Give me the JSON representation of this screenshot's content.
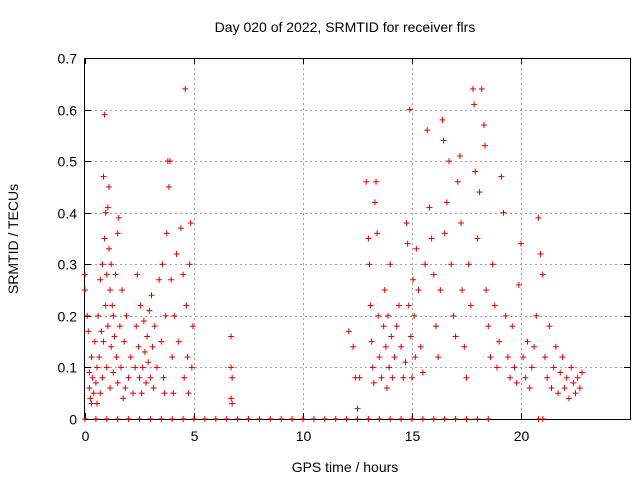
{
  "chart_data": {
    "type": "scatter",
    "title": "Day 020 of 2022, SRMTID for receiver flrs",
    "xlabel": "GPS time / hours",
    "ylabel": "SRMTID / TECUs",
    "xlim": [
      0,
      25
    ],
    "ylim": [
      0,
      0.7
    ],
    "xticks": [
      0,
      5,
      10,
      15,
      20
    ],
    "yticks": [
      0,
      0.1,
      0.2,
      0.3,
      0.4,
      0.5,
      0.6,
      0.7
    ],
    "grid": true,
    "legend": "none",
    "marker": "plus",
    "color": "#dd0000",
    "series": [
      {
        "name": "SRMTID",
        "points": [
          [
            0.0,
            0.28
          ],
          [
            0.0,
            0.25
          ],
          [
            0.1,
            0.2
          ],
          [
            0.15,
            0.17
          ],
          [
            0.2,
            0.09
          ],
          [
            0.2,
            0.06
          ],
          [
            0.25,
            0.04
          ],
          [
            0.3,
            0.12
          ],
          [
            0.3,
            0.03
          ],
          [
            0.35,
            0.08
          ],
          [
            0.4,
            0.05
          ],
          [
            0.45,
            0.15
          ],
          [
            0.5,
            0.07
          ],
          [
            0.55,
            0.1
          ],
          [
            0.55,
            0.03
          ],
          [
            0.6,
            0.2
          ],
          [
            0.65,
            0.12
          ],
          [
            0.7,
            0.05
          ],
          [
            0.7,
            0.27
          ],
          [
            0.75,
            0.17
          ],
          [
            0.8,
            0.3
          ],
          [
            0.8,
            0.08
          ],
          [
            0.85,
            0.15
          ],
          [
            0.85,
            0.47
          ],
          [
            0.9,
            0.35
          ],
          [
            0.9,
            0.59
          ],
          [
            0.95,
            0.4
          ],
          [
            0.95,
            0.22
          ],
          [
            1.0,
            0.28
          ],
          [
            1.0,
            0.1
          ],
          [
            1.05,
            0.41
          ],
          [
            1.05,
            0.18
          ],
          [
            1.1,
            0.45
          ],
          [
            1.1,
            0.33
          ],
          [
            1.15,
            0.25
          ],
          [
            1.15,
            0.06
          ],
          [
            1.2,
            0.3
          ],
          [
            1.2,
            0.14
          ],
          [
            1.25,
            0.22
          ],
          [
            1.3,
            0.09
          ],
          [
            1.3,
            0.2
          ],
          [
            1.35,
            0.16
          ],
          [
            1.4,
            0.28
          ],
          [
            1.45,
            0.12
          ],
          [
            1.5,
            0.36
          ],
          [
            1.5,
            0.07
          ],
          [
            1.55,
            0.39
          ],
          [
            1.6,
            0.18
          ],
          [
            1.65,
            0.1
          ],
          [
            1.7,
            0.25
          ],
          [
            1.75,
            0.04
          ],
          [
            1.8,
            0.15
          ],
          [
            1.85,
            0.06
          ],
          [
            1.9,
            0.2
          ],
          [
            2.0,
            0.08
          ],
          [
            2.1,
            0.12
          ],
          [
            2.2,
            0.05
          ],
          [
            2.3,
            0.1
          ],
          [
            2.35,
            0.18
          ],
          [
            2.4,
            0.28
          ],
          [
            2.45,
            0.14
          ],
          [
            2.5,
            0.08
          ],
          [
            2.55,
            0.22
          ],
          [
            2.6,
            0.05
          ],
          [
            2.65,
            0.1
          ],
          [
            2.7,
            0.19
          ],
          [
            2.75,
            0.13
          ],
          [
            2.8,
            0.07
          ],
          [
            2.85,
            0.16
          ],
          [
            2.9,
            0.11
          ],
          [
            2.95,
            0.21
          ],
          [
            3.0,
            0.08
          ],
          [
            3.05,
            0.24
          ],
          [
            3.1,
            0.14
          ],
          [
            3.15,
            0.06
          ],
          [
            3.2,
            0.18
          ],
          [
            3.3,
            0.1
          ],
          [
            3.4,
            0.27
          ],
          [
            3.5,
            0.15
          ],
          [
            3.55,
            0.3
          ],
          [
            3.6,
            0.08
          ],
          [
            3.65,
            0.05
          ],
          [
            3.7,
            0.2
          ],
          [
            3.75,
            0.36
          ],
          [
            3.8,
            0.5
          ],
          [
            3.85,
            0.45
          ],
          [
            3.9,
            0.5
          ],
          [
            3.95,
            0.27
          ],
          [
            4.0,
            0.12
          ],
          [
            4.05,
            0.05
          ],
          [
            4.1,
            0.2
          ],
          [
            4.2,
            0.32
          ],
          [
            4.3,
            0.15
          ],
          [
            4.4,
            0.37
          ],
          [
            4.5,
            0.28
          ],
          [
            4.55,
            0.08
          ],
          [
            4.6,
            0.64
          ],
          [
            4.65,
            0.22
          ],
          [
            4.7,
            0.12
          ],
          [
            4.75,
            0.05
          ],
          [
            4.8,
            0.3
          ],
          [
            4.85,
            0.38
          ],
          [
            4.9,
            0.1
          ],
          [
            4.95,
            0.18
          ],
          [
            6.7,
            0.16
          ],
          [
            6.7,
            0.1
          ],
          [
            6.75,
            0.08
          ],
          [
            6.7,
            0.04
          ],
          [
            6.75,
            0.03
          ],
          [
            12.1,
            0.17
          ],
          [
            12.3,
            0.14
          ],
          [
            12.4,
            0.08
          ],
          [
            12.6,
            0.08
          ],
          [
            12.5,
            0.02
          ],
          [
            12.9,
            0.46
          ],
          [
            13.0,
            0.35
          ],
          [
            13.05,
            0.3
          ],
          [
            13.1,
            0.22
          ],
          [
            13.15,
            0.15
          ],
          [
            13.2,
            0.1
          ],
          [
            13.25,
            0.07
          ],
          [
            13.3,
            0.42
          ],
          [
            13.35,
            0.46
          ],
          [
            13.4,
            0.36
          ],
          [
            13.45,
            0.2
          ],
          [
            13.5,
            0.12
          ],
          [
            13.6,
            0.08
          ],
          [
            13.7,
            0.18
          ],
          [
            13.75,
            0.25
          ],
          [
            13.8,
            0.14
          ],
          [
            13.85,
            0.06
          ],
          [
            13.9,
            0.2
          ],
          [
            13.95,
            0.1
          ],
          [
            14.0,
            0.3
          ],
          [
            14.05,
            0.16
          ],
          [
            14.1,
            0.08
          ],
          [
            14.2,
            0.12
          ],
          [
            14.3,
            0.18
          ],
          [
            14.4,
            0.22
          ],
          [
            14.5,
            0.14
          ],
          [
            14.6,
            0.08
          ],
          [
            14.7,
            0.11
          ],
          [
            14.75,
            0.38
          ],
          [
            14.8,
            0.34
          ],
          [
            14.85,
            0.22
          ],
          [
            14.9,
            0.6
          ],
          [
            14.95,
            0.16
          ],
          [
            15.0,
            0.08
          ],
          [
            15.05,
            0.27
          ],
          [
            15.1,
            0.2
          ],
          [
            15.15,
            0.12
          ],
          [
            15.2,
            0.33
          ],
          [
            15.3,
            0.25
          ],
          [
            15.4,
            0.14
          ],
          [
            15.5,
            0.09
          ],
          [
            15.6,
            0.3
          ],
          [
            15.7,
            0.56
          ],
          [
            15.8,
            0.41
          ],
          [
            15.9,
            0.35
          ],
          [
            16.0,
            0.28
          ],
          [
            16.1,
            0.18
          ],
          [
            16.2,
            0.12
          ],
          [
            16.3,
            0.25
          ],
          [
            16.4,
            0.58
          ],
          [
            16.45,
            0.54
          ],
          [
            16.5,
            0.36
          ],
          [
            16.6,
            0.42
          ],
          [
            16.7,
            0.5
          ],
          [
            16.8,
            0.3
          ],
          [
            16.9,
            0.2
          ],
          [
            17.0,
            0.16
          ],
          [
            17.1,
            0.46
          ],
          [
            17.2,
            0.51
          ],
          [
            17.25,
            0.38
          ],
          [
            17.3,
            0.25
          ],
          [
            17.4,
            0.14
          ],
          [
            17.5,
            0.08
          ],
          [
            17.6,
            0.3
          ],
          [
            17.7,
            0.22
          ],
          [
            17.8,
            0.64
          ],
          [
            17.85,
            0.61
          ],
          [
            17.9,
            0.48
          ],
          [
            18.0,
            0.35
          ],
          [
            18.1,
            0.44
          ],
          [
            18.2,
            0.64
          ],
          [
            18.3,
            0.57
          ],
          [
            18.35,
            0.53
          ],
          [
            18.4,
            0.25
          ],
          [
            18.5,
            0.18
          ],
          [
            18.6,
            0.12
          ],
          [
            18.7,
            0.3
          ],
          [
            18.8,
            0.22
          ],
          [
            18.9,
            0.1
          ],
          [
            19.0,
            0.15
          ],
          [
            19.1,
            0.47
          ],
          [
            19.2,
            0.4
          ],
          [
            19.3,
            0.2
          ],
          [
            19.4,
            0.12
          ],
          [
            19.5,
            0.08
          ],
          [
            19.6,
            0.18
          ],
          [
            19.7,
            0.1
          ],
          [
            19.8,
            0.07
          ],
          [
            19.9,
            0.26
          ],
          [
            20.0,
            0.34
          ],
          [
            20.1,
            0.12
          ],
          [
            20.2,
            0.08
          ],
          [
            20.3,
            0.15
          ],
          [
            20.4,
            0.06
          ],
          [
            20.5,
            0.1
          ],
          [
            20.6,
            0.14
          ],
          [
            20.7,
            0.2
          ],
          [
            20.8,
            0.39
          ],
          [
            20.9,
            0.32
          ],
          [
            21.0,
            0.28
          ],
          [
            21.1,
            0.12
          ],
          [
            21.2,
            0.08
          ],
          [
            21.3,
            0.18
          ],
          [
            21.4,
            0.06
          ],
          [
            21.5,
            0.1
          ],
          [
            21.6,
            0.14
          ],
          [
            21.7,
            0.05
          ],
          [
            21.8,
            0.09
          ],
          [
            21.9,
            0.12
          ],
          [
            22.0,
            0.06
          ],
          [
            22.1,
            0.08
          ],
          [
            22.2,
            0.04
          ],
          [
            22.3,
            0.1
          ],
          [
            22.4,
            0.07
          ],
          [
            22.5,
            0.05
          ],
          [
            22.6,
            0.08
          ],
          [
            22.7,
            0.06
          ],
          [
            22.8,
            0.09
          ],
          [
            5.0,
            0.0
          ],
          [
            5.5,
            0.0
          ],
          [
            6.0,
            0.0
          ],
          [
            6.5,
            0.0
          ],
          [
            7.0,
            0.0
          ],
          [
            7.5,
            0.0
          ],
          [
            8.0,
            0.0
          ],
          [
            8.5,
            0.0
          ],
          [
            9.0,
            0.0
          ],
          [
            9.5,
            0.0
          ],
          [
            10.0,
            0.0
          ],
          [
            10.5,
            0.0
          ],
          [
            11.0,
            0.0
          ],
          [
            11.5,
            0.0
          ],
          [
            12.0,
            0.0
          ],
          [
            12.5,
            0.0
          ],
          [
            13.0,
            0.0
          ],
          [
            13.5,
            0.0
          ],
          [
            14.0,
            0.0
          ],
          [
            14.5,
            0.0
          ],
          [
            15.0,
            0.0
          ],
          [
            15.5,
            0.0
          ],
          [
            16.0,
            0.0
          ],
          [
            16.5,
            0.0
          ],
          [
            17.0,
            0.0
          ],
          [
            17.5,
            0.0
          ],
          [
            18.0,
            0.0
          ],
          [
            18.5,
            0.0
          ],
          [
            20.8,
            0.0
          ],
          [
            21.0,
            0.0
          ],
          [
            0.0,
            0.0
          ],
          [
            0.5,
            0.0
          ],
          [
            1.0,
            0.0
          ],
          [
            1.5,
            0.0
          ],
          [
            2.0,
            0.0
          ],
          [
            2.5,
            0.0
          ],
          [
            3.0,
            0.0
          ],
          [
            3.5,
            0.0
          ],
          [
            4.0,
            0.0
          ],
          [
            4.5,
            0.0
          ]
        ]
      }
    ]
  }
}
